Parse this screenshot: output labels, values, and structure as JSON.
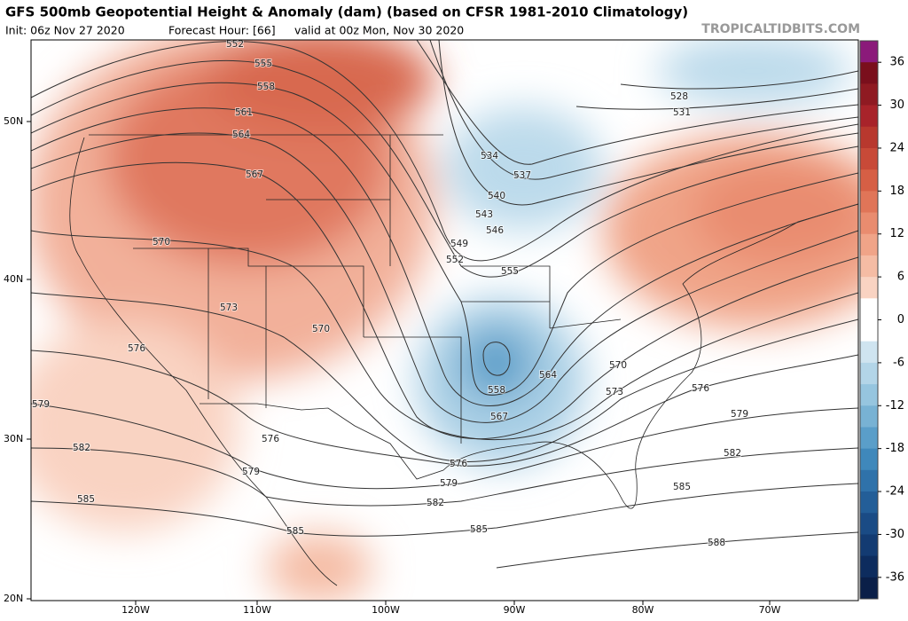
{
  "header": {
    "title": "GFS 500mb Geopotential Height & Anomaly (dam) (based on CFSR 1981-2010 Climatology)",
    "init": "Init: 06z Nov 27 2020",
    "forecast": "Forecast Hour: [66]",
    "valid": "valid at 00z Mon, Nov 30 2020",
    "site": "TROPICALTIDBITS.COM"
  },
  "map": {
    "lat_labels": [
      "50N",
      "40N",
      "30N",
      "20N"
    ],
    "lon_labels": [
      "120W",
      "110W",
      "100W",
      "90W",
      "80W",
      "70W"
    ],
    "contour_labels": [
      552,
      555,
      558,
      561,
      564,
      567,
      570,
      573,
      570,
      576,
      579,
      576,
      582,
      579,
      585,
      585,
      582,
      579,
      576,
      585,
      567,
      558,
      564,
      570,
      573,
      576,
      579,
      582,
      585,
      588,
      528,
      531,
      534,
      537,
      540,
      543,
      546,
      549,
      552,
      555
    ]
  },
  "colorbar": {
    "lim": [
      -39,
      39
    ],
    "ticks": [
      36,
      30,
      24,
      18,
      12,
      6,
      0,
      -6,
      -12,
      -18,
      -24,
      -30,
      -36
    ],
    "colors": [
      "#8b1a7a",
      "#7a0f1c",
      "#8f1a22",
      "#a8232a",
      "#b8382e",
      "#c84a38",
      "#d65f45",
      "#e07558",
      "#e98c6f",
      "#f0a488",
      "#f5bca4",
      "#f9d3c2",
      "#ffffff",
      "#ffffff",
      "#cfe4f0",
      "#b3d5e8",
      "#96c5df",
      "#78b2d4",
      "#5a9ec9",
      "#3f88bb",
      "#2f72aa",
      "#235e98",
      "#1a4b85",
      "#133b72",
      "#0d2c5e",
      "#0a1f48"
    ]
  }
}
